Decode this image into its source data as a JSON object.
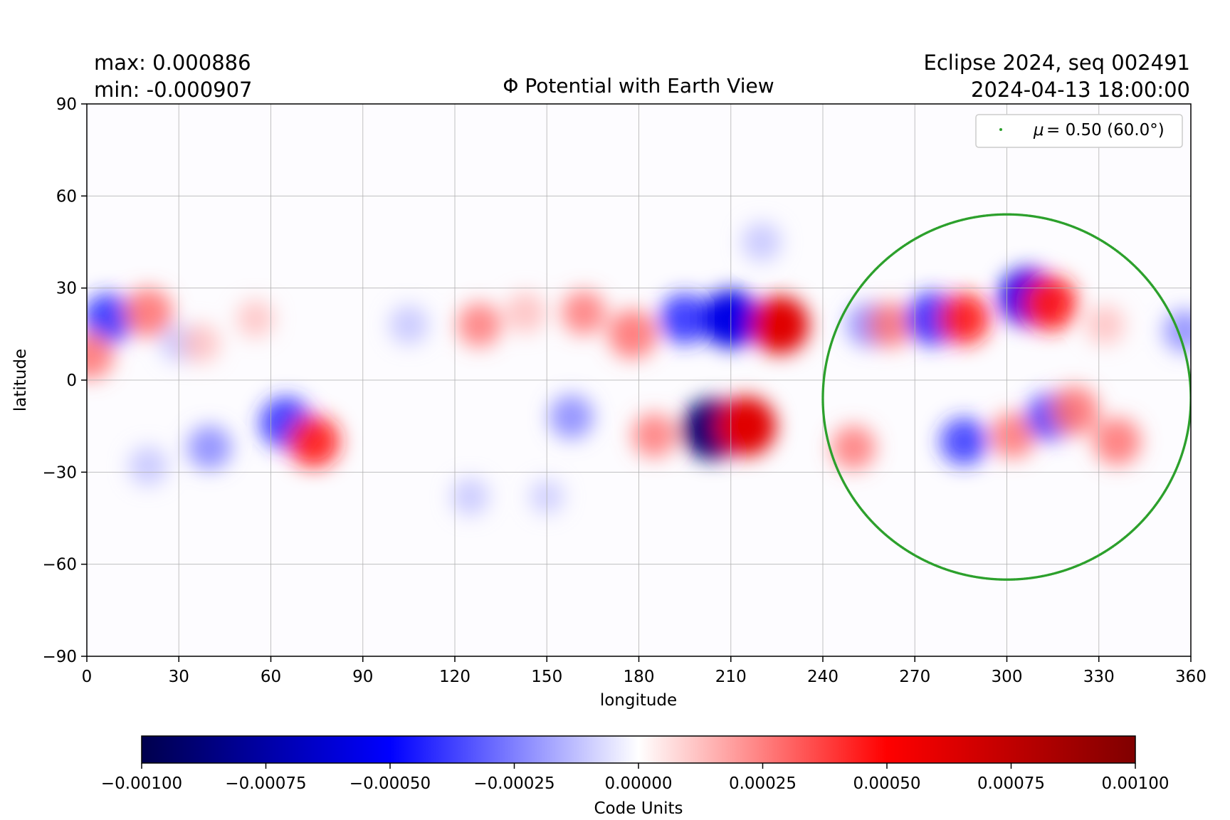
{
  "header": {
    "max_text": "max:  0.000886",
    "min_text": "min:  -0.000907",
    "run_text": "Eclipse 2024, seq 002491",
    "date_text": "2024-04-13 18:00:00"
  },
  "chart_data": {
    "type": "heatmap",
    "title": "Φ Potential with Earth View",
    "xlabel": "longitude",
    "ylabel": "latitude",
    "xlim": [
      0,
      360
    ],
    "ylim": [
      -90,
      90
    ],
    "x_ticks": [
      0,
      30,
      60,
      90,
      120,
      150,
      180,
      210,
      240,
      270,
      300,
      330,
      360
    ],
    "x_tick_labels": [
      "0",
      "30",
      "60",
      "90",
      "120",
      "150",
      "180",
      "210",
      "240",
      "270",
      "300",
      "330",
      "360"
    ],
    "y_ticks": [
      90,
      60,
      30,
      0,
      -30,
      -60,
      -90
    ],
    "y_tick_labels": [
      "90",
      "60",
      "30",
      "0",
      "−30",
      "−60",
      "−90"
    ],
    "grid": true,
    "colormap": "seismic",
    "color_range": [
      -0.001,
      0.001
    ],
    "max_value": 0.000886,
    "min_value": -0.000907,
    "field_features": [
      {
        "lon": 7,
        "lat": 20,
        "sign": "negative",
        "strength": 0.65
      },
      {
        "lon": 1,
        "lat": 8,
        "sign": "positive",
        "strength": 0.55
      },
      {
        "lon": 20,
        "lat": 22,
        "sign": "positive",
        "strength": 0.6
      },
      {
        "lon": 30,
        "lat": 12,
        "sign": "negative",
        "strength": 0.25
      },
      {
        "lon": 37,
        "lat": 12,
        "sign": "positive",
        "strength": 0.3
      },
      {
        "lon": 55,
        "lat": 20,
        "sign": "positive",
        "strength": 0.25
      },
      {
        "lon": 105,
        "lat": 18,
        "sign": "negative",
        "strength": 0.3
      },
      {
        "lon": 128,
        "lat": 18,
        "sign": "positive",
        "strength": 0.45
      },
      {
        "lon": 143,
        "lat": 22,
        "sign": "positive",
        "strength": 0.35
      },
      {
        "lon": 162,
        "lat": 22,
        "sign": "positive",
        "strength": 0.45
      },
      {
        "lon": 178,
        "lat": 15,
        "sign": "positive",
        "strength": 0.6
      },
      {
        "lon": 195,
        "lat": 20,
        "sign": "negative",
        "strength": 0.65
      },
      {
        "lon": 210,
        "lat": 20,
        "sign": "negative",
        "strength": 0.9
      },
      {
        "lon": 226,
        "lat": 18,
        "sign": "positive",
        "strength": 0.9
      },
      {
        "lon": 255,
        "lat": 18,
        "sign": "negative",
        "strength": 0.45
      },
      {
        "lon": 262,
        "lat": 18,
        "sign": "positive",
        "strength": 0.5
      },
      {
        "lon": 276,
        "lat": 20,
        "sign": "negative",
        "strength": 0.75
      },
      {
        "lon": 286,
        "lat": 20,
        "sign": "positive",
        "strength": 0.7
      },
      {
        "lon": 307,
        "lat": 27,
        "sign": "negative",
        "strength": 0.9
      },
      {
        "lon": 314,
        "lat": 25,
        "sign": "positive",
        "strength": 0.8
      },
      {
        "lon": 332,
        "lat": 18,
        "sign": "positive",
        "strength": 0.3
      },
      {
        "lon": 358,
        "lat": 16,
        "sign": "negative",
        "strength": 0.4
      },
      {
        "lon": 65,
        "lat": -14,
        "sign": "negative",
        "strength": 0.7
      },
      {
        "lon": 74,
        "lat": -20,
        "sign": "positive",
        "strength": 0.7
      },
      {
        "lon": 40,
        "lat": -22,
        "sign": "negative",
        "strength": 0.45
      },
      {
        "lon": 20,
        "lat": -28,
        "sign": "negative",
        "strength": 0.3
      },
      {
        "lon": 158,
        "lat": -12,
        "sign": "negative",
        "strength": 0.45
      },
      {
        "lon": 185,
        "lat": -18,
        "sign": "positive",
        "strength": 0.45
      },
      {
        "lon": 204,
        "lat": -16,
        "sign": "negative",
        "strength": 1.0
      },
      {
        "lon": 215,
        "lat": -15,
        "sign": "positive",
        "strength": 0.95
      },
      {
        "lon": 250,
        "lat": -22,
        "sign": "positive",
        "strength": 0.45
      },
      {
        "lon": 286,
        "lat": -20,
        "sign": "negative",
        "strength": 0.55
      },
      {
        "lon": 302,
        "lat": -18,
        "sign": "positive",
        "strength": 0.5
      },
      {
        "lon": 314,
        "lat": -12,
        "sign": "negative",
        "strength": 0.55
      },
      {
        "lon": 322,
        "lat": -10,
        "sign": "positive",
        "strength": 0.6
      },
      {
        "lon": 336,
        "lat": -20,
        "sign": "positive",
        "strength": 0.55
      },
      {
        "lon": 150,
        "lat": -38,
        "sign": "negative",
        "strength": 0.15
      },
      {
        "lon": 125,
        "lat": -38,
        "sign": "negative",
        "strength": 0.25
      },
      {
        "lon": 220,
        "lat": 45,
        "sign": "negative",
        "strength": 0.3
      }
    ],
    "series": [
      {
        "name": "μ = 0.50 (60.0°)",
        "style": "scatter",
        "color": "#2ca02c",
        "shape": "closed-curve",
        "center_lon": 300,
        "center_lat": -6,
        "lon_radius": 60,
        "lat_top": 54,
        "lat_bottom": -65
      }
    ],
    "legend": {
      "position": "top-right",
      "label_prefix": "μ",
      "label_value": "= 0.50 (60.0°)",
      "color": "#2ca02c"
    },
    "colorbar": {
      "label": "Code Units",
      "ticks": [
        -0.001,
        -0.00075,
        -0.0005,
        -0.00025,
        0,
        0.00025,
        0.0005,
        0.00075,
        0.001
      ],
      "tick_labels": [
        "−0.00100",
        "−0.00075",
        "−0.00050",
        "−0.00025",
        "0.00000",
        "0.00025",
        "0.00050",
        "0.00075",
        "0.00100"
      ],
      "colors": [
        "#00004d",
        "#0000ff",
        "#ffffff",
        "#ff0000",
        "#800000"
      ]
    }
  }
}
